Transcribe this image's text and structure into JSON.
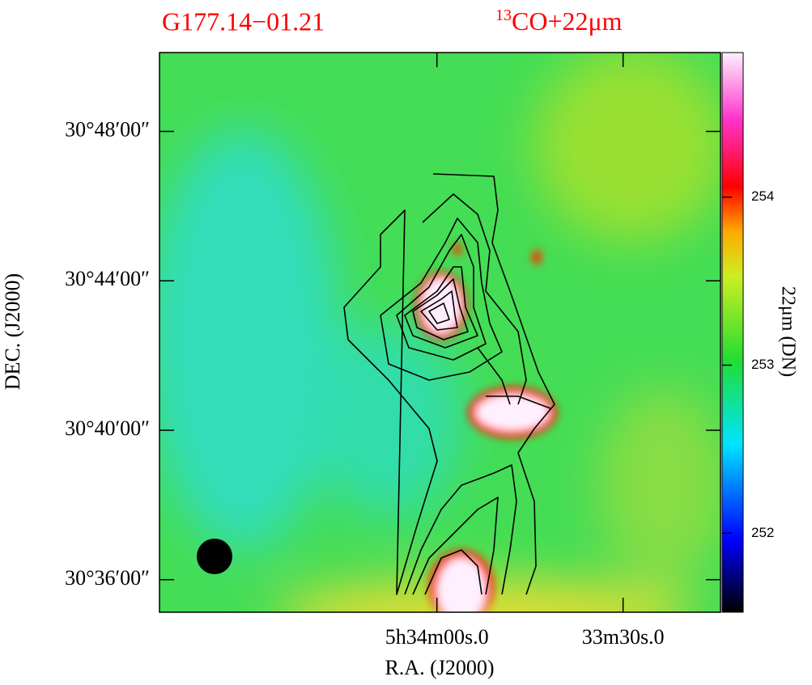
{
  "chart_data": {
    "type": "image",
    "title": "G177.14−01.21",
    "subtitle": {
      "sup": "13",
      "text": "CO+22μm"
    },
    "x_label": "R.A. (J2000)",
    "y_label": "DEC. (J2000)",
    "colorbar_label": "22μm (DN)",
    "xlim": [
      104.7,
      14.3
    ],
    "xticks": [
      {
        "value": 60,
        "label": "5h34m00s.0"
      },
      {
        "value": 30,
        "label": "33m30s.0"
      }
    ],
    "ylim": [
      35.13,
      50.11
    ],
    "yticks": [
      {
        "value": 48,
        "label": "30°48′00″"
      },
      {
        "value": 44,
        "label": "30°44′00″"
      },
      {
        "value": 40,
        "label": "30°40′00″"
      },
      {
        "value": 36,
        "label": "30°36′00″"
      }
    ],
    "clim": [
      251.53,
      254.86
    ],
    "cticks": [
      252,
      253,
      254
    ]
  }
}
